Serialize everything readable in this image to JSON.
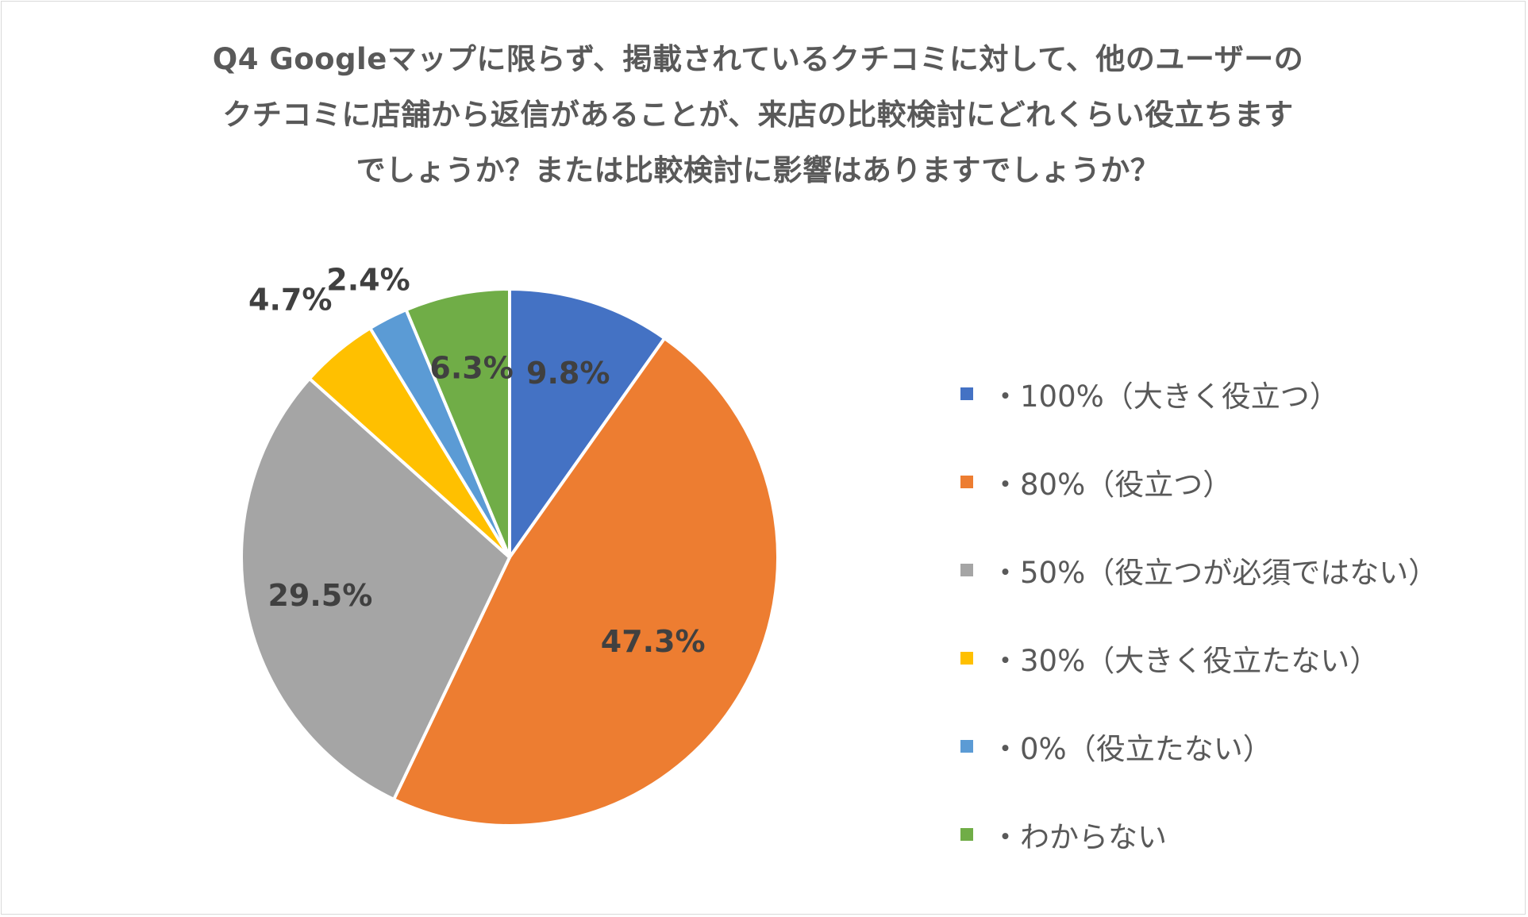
{
  "chart_data": {
    "type": "pie",
    "title_lines": [
      "Q4 Googleマップに限らず、掲載されているクチコミに対して、他のユーザーの",
      "クチコミに店舗から返信があることが、来店の比較検討にどれくらい役立ちます",
      "でしょうか？または比較検討に影響はありますでしょうか？"
    ],
    "categories": [
      "・100%（大きく役立つ）",
      "・80%（役立つ）",
      "・50%（役立つが必須ではない）",
      "・30%（大きく役立たない）",
      "・0%（役立たない）",
      "・わからない"
    ],
    "values": [
      9.8,
      47.3,
      29.5,
      4.7,
      2.4,
      6.3
    ],
    "data_labels": [
      "9.8%",
      "47.3%",
      "29.5%",
      "4.7%",
      "2.4%",
      "6.3%"
    ],
    "colors": [
      "#4472c4",
      "#ed7d31",
      "#a5a5a5",
      "#ffc000",
      "#5b9bd5",
      "#70ad47"
    ],
    "legend_position": "right",
    "start_angle": "12 o'clock, clockwise"
  }
}
